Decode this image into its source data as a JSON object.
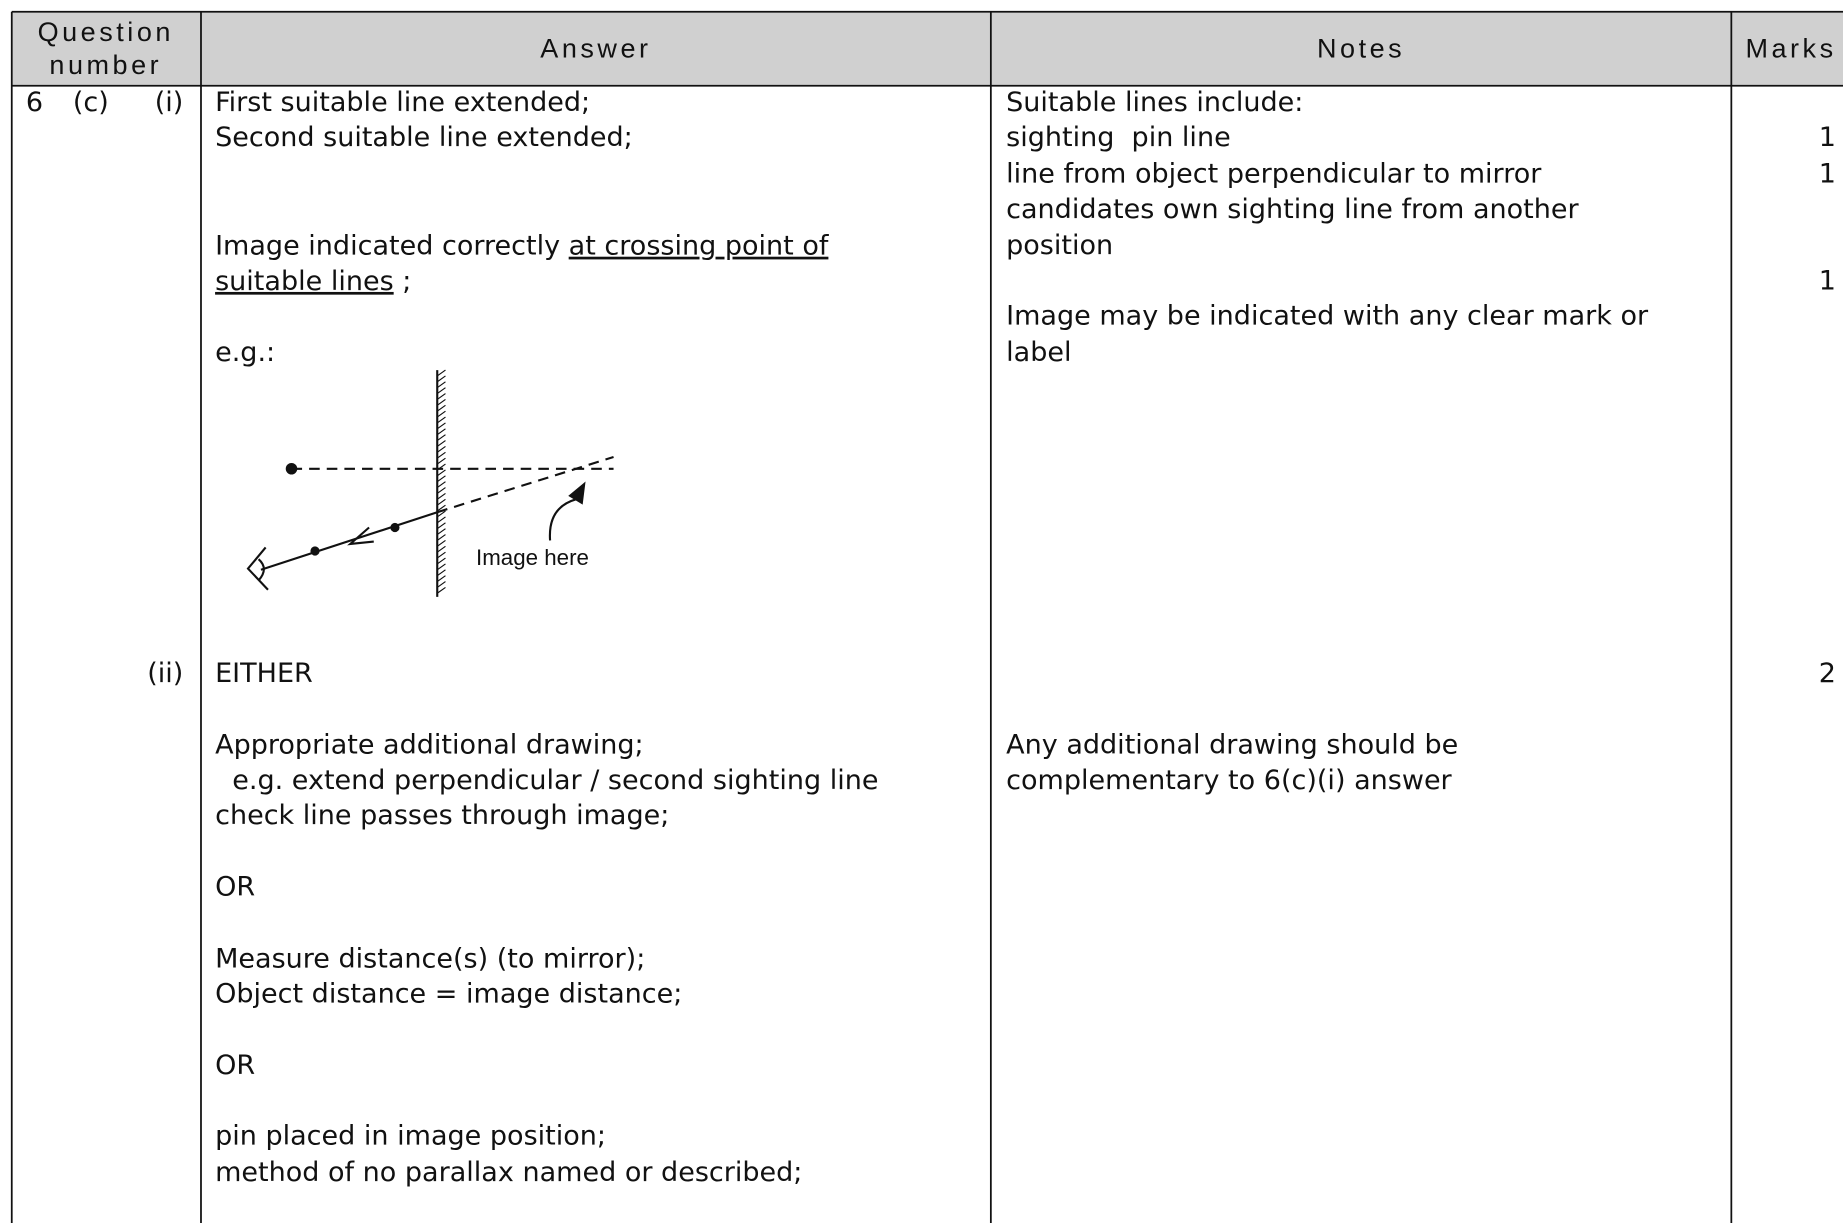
{
  "header": {
    "question_number_line1": "Question",
    "question_number_line2": "number",
    "answer": "Answer",
    "notes": "Notes",
    "marks": "Marks"
  },
  "question": {
    "number": "6",
    "part": "(c)",
    "subparts": [
      "(i)",
      "(ii)"
    ]
  },
  "part_i": {
    "answer_lines": [
      "First suitable line extended;",
      "Second suitable line extended;"
    ],
    "image_line": {
      "prefix": "Image indicated correctly ",
      "underlined_1": "at crossing point of",
      "underlined_2": "suitable lines",
      "suffix": " ;"
    },
    "example": "e.g.:",
    "diagram_label": "Image here",
    "notes": [
      "Suitable lines include:",
      "sighting  pin line",
      "line from object perpendicular to mirror",
      "candidates own sighting line from another",
      "position",
      "Image may be indicated with any clear mark or",
      "label"
    ],
    "marks": [
      1,
      1,
      1
    ]
  },
  "part_ii": {
    "answer_lines": [
      "EITHER",
      "Appropriate additional drawing;",
      "  e.g. extend perpendicular / second sighting line",
      "check line passes through image;",
      "OR",
      "Measure distance(s) (to mirror);",
      "Object distance = image distance;",
      "OR",
      "pin placed in image position;",
      "method of no parallax named or described;"
    ],
    "notes": [
      "Any additional drawing should be",
      "complementary to 6(c)(i) answer"
    ],
    "marks": [
      2
    ]
  }
}
